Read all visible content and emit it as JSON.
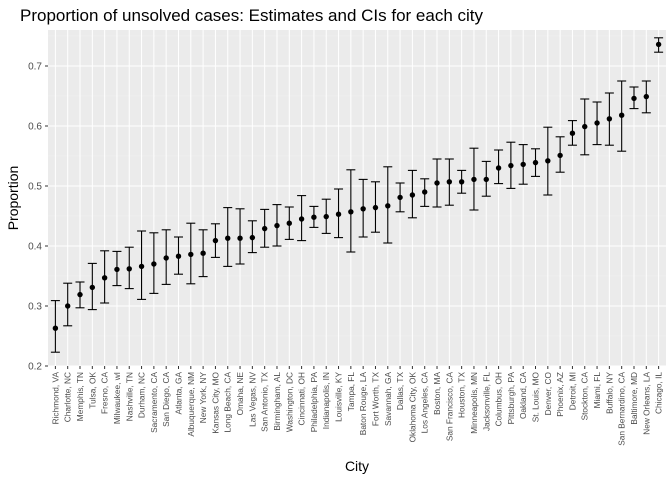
{
  "chart_data": {
    "type": "scatter",
    "title": "Proportion of unsolved cases: Estimates and CIs for each city",
    "xlabel": "City",
    "ylabel": "Proportion",
    "ylim": [
      0.2,
      0.76
    ],
    "yticks": [
      0.2,
      0.3,
      0.4,
      0.5,
      0.6,
      0.7
    ],
    "ytick_labels": [
      "0.2",
      "0.3",
      "0.4",
      "0.5",
      "0.6",
      "0.7"
    ],
    "grid": true,
    "theme": "ggplot-grey",
    "colors": {
      "panel": "#ebebeb",
      "grid_major": "#ffffff",
      "grid_minor": "#f2f2f2",
      "point": "#000000"
    },
    "categories": [
      "Richmond, VA",
      "Charlotte, NC",
      "Memphis, TN",
      "Tulsa, OK",
      "Fresno, CA",
      "Milwaukee, wI",
      "Nashville, TN",
      "Durham, NC",
      "Sacramento, CA",
      "San Diego, CA",
      "Atlanta, GA",
      "Albuquerque, NM",
      "New York, NY",
      "Kansas City, MO",
      "Long Beach, CA",
      "Omaha, NE",
      "Las Vegas, NV",
      "San Antonio, TX",
      "Birmingham, AL",
      "Washington, DC",
      "Cincinnati, OH",
      "Philadelphia, PA",
      "Indianapolis, IN",
      "Louisville, KY",
      "Tampa, FL",
      "Baton Rouge, LA",
      "Fort Worth, TX",
      "Savannah, GA",
      "Dallas, TX",
      "Oklahoma City, OK",
      "Los Angeles, CA",
      "Boston, MA",
      "San Francisco, CA",
      "Houston, TX",
      "Minneapolis, MN",
      "Jacksonville, FL",
      "Columbus, OH",
      "Pittsburgh, PA",
      "Oakland, CA",
      "St. Louis, MO",
      "Denver, CO",
      "Phoenix, AZ",
      "Detroit, MI",
      "Stockton, CA",
      "Miami, FL",
      "Buffalo, NY",
      "San Bernardino, CA",
      "Baltimore, MD",
      "New Orleans, LA",
      "Chicago, IL"
    ],
    "estimate": [
      0.263,
      0.3,
      0.319,
      0.331,
      0.347,
      0.361,
      0.362,
      0.366,
      0.37,
      0.38,
      0.383,
      0.386,
      0.388,
      0.409,
      0.413,
      0.413,
      0.414,
      0.429,
      0.434,
      0.438,
      0.445,
      0.448,
      0.449,
      0.453,
      0.457,
      0.462,
      0.464,
      0.467,
      0.481,
      0.485,
      0.49,
      0.505,
      0.507,
      0.507,
      0.511,
      0.511,
      0.53,
      0.534,
      0.536,
      0.539,
      0.542,
      0.551,
      0.588,
      0.599,
      0.605,
      0.612,
      0.618,
      0.646,
      0.649,
      0.736
    ],
    "ci_lower": [
      0.223,
      0.267,
      0.297,
      0.294,
      0.305,
      0.334,
      0.329,
      0.311,
      0.321,
      0.336,
      0.353,
      0.337,
      0.349,
      0.381,
      0.366,
      0.37,
      0.389,
      0.398,
      0.4,
      0.411,
      0.409,
      0.431,
      0.421,
      0.414,
      0.39,
      0.415,
      0.423,
      0.405,
      0.457,
      0.447,
      0.466,
      0.465,
      0.468,
      0.488,
      0.46,
      0.483,
      0.504,
      0.496,
      0.503,
      0.516,
      0.485,
      0.523,
      0.568,
      0.552,
      0.569,
      0.568,
      0.558,
      0.629,
      0.622,
      0.723
    ],
    "ci_upper": [
      0.309,
      0.338,
      0.34,
      0.371,
      0.392,
      0.391,
      0.398,
      0.425,
      0.422,
      0.427,
      0.415,
      0.438,
      0.427,
      0.437,
      0.464,
      0.462,
      0.442,
      0.461,
      0.469,
      0.465,
      0.484,
      0.466,
      0.478,
      0.495,
      0.527,
      0.511,
      0.507,
      0.532,
      0.505,
      0.526,
      0.512,
      0.545,
      0.545,
      0.526,
      0.563,
      0.541,
      0.56,
      0.573,
      0.569,
      0.562,
      0.598,
      0.582,
      0.609,
      0.645,
      0.64,
      0.655,
      0.675,
      0.665,
      0.675,
      0.747
    ]
  }
}
